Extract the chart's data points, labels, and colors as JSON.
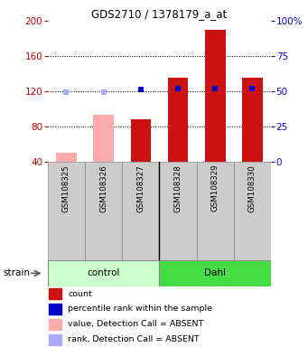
{
  "title": "GDS2710 / 1378179_a_at",
  "samples": [
    "GSM108325",
    "GSM108326",
    "GSM108327",
    "GSM108328",
    "GSM108329",
    "GSM108330"
  ],
  "group_labels": [
    "control",
    "Dahl"
  ],
  "group_colors": [
    "#ccffcc",
    "#44dd44"
  ],
  "bar_values": [
    50,
    93,
    88,
    135,
    190,
    135
  ],
  "bar_colors": [
    "#ffaaaa",
    "#ffaaaa",
    "#cc1111",
    "#cc1111",
    "#cc1111",
    "#cc1111"
  ],
  "dot_values_pct": [
    49,
    49,
    51,
    52,
    52,
    52
  ],
  "dot_colors": [
    "#aaaaff",
    "#aaaaff",
    "#0000cc",
    "#0000cc",
    "#0000cc",
    "#0000cc"
  ],
  "ylim_left": [
    40,
    200
  ],
  "ylim_right": [
    0,
    100
  ],
  "yticks_left": [
    40,
    80,
    120,
    160,
    200
  ],
  "yticks_right": [
    0,
    25,
    50,
    75,
    100
  ],
  "ytick_labels_right": [
    "0",
    "25",
    "50",
    "75",
    "100%"
  ],
  "left_axis_color": "#cc0000",
  "right_axis_color": "#0000cc",
  "legend_items": [
    {
      "color": "#cc1111",
      "label": "count"
    },
    {
      "color": "#0000cc",
      "label": "percentile rank within the sample"
    },
    {
      "color": "#ffaaaa",
      "label": "value, Detection Call = ABSENT"
    },
    {
      "color": "#aaaaff",
      "label": "rank, Detection Call = ABSENT"
    }
  ]
}
